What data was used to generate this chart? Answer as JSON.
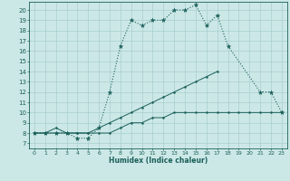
{
  "title": "",
  "xlabel": "Humidex (Indice chaleur)",
  "bg_color": "#cce8e6",
  "line_color": "#1a5f5a",
  "grid_color": "#a8cece",
  "xlim": [
    -0.5,
    23.5
  ],
  "ylim": [
    6.5,
    20.8
  ],
  "xticks": [
    0,
    1,
    2,
    3,
    4,
    5,
    6,
    7,
    8,
    9,
    10,
    11,
    12,
    13,
    14,
    15,
    16,
    17,
    18,
    19,
    20,
    21,
    22,
    23
  ],
  "yticks": [
    7,
    8,
    9,
    10,
    11,
    12,
    13,
    14,
    15,
    16,
    17,
    18,
    19,
    20
  ],
  "line1_x": [
    0,
    1,
    2,
    3,
    4,
    5,
    6,
    7,
    8,
    9,
    10,
    11,
    12,
    13,
    14,
    15,
    16,
    17,
    18,
    21,
    22,
    23
  ],
  "line1_y": [
    8,
    8,
    8,
    8,
    7.5,
    7.5,
    8.5,
    12,
    16.5,
    19,
    18.5,
    19,
    19,
    20,
    20,
    20.5,
    18.5,
    19.5,
    16.5,
    12,
    12,
    10
  ],
  "line2_x": [
    0,
    1,
    2,
    3,
    4,
    5,
    6,
    7,
    8,
    9,
    10,
    11,
    12,
    13,
    14,
    15,
    16,
    17
  ],
  "line2_y": [
    8,
    8,
    8.5,
    8,
    8,
    8,
    8.5,
    9,
    9.5,
    10,
    10.5,
    11,
    11.5,
    12,
    12.5,
    13,
    13.5,
    14
  ],
  "line3_x": [
    0,
    1,
    2,
    3,
    4,
    5,
    6,
    7,
    8,
    9,
    10,
    11,
    12,
    13,
    14,
    15,
    16,
    17,
    18,
    19,
    20,
    21,
    22,
    23
  ],
  "line3_y": [
    8,
    8,
    8,
    8,
    8,
    8,
    8,
    8,
    8.5,
    9,
    9,
    9.5,
    9.5,
    10,
    10,
    10,
    10,
    10,
    10,
    10,
    10,
    10,
    10,
    10
  ]
}
